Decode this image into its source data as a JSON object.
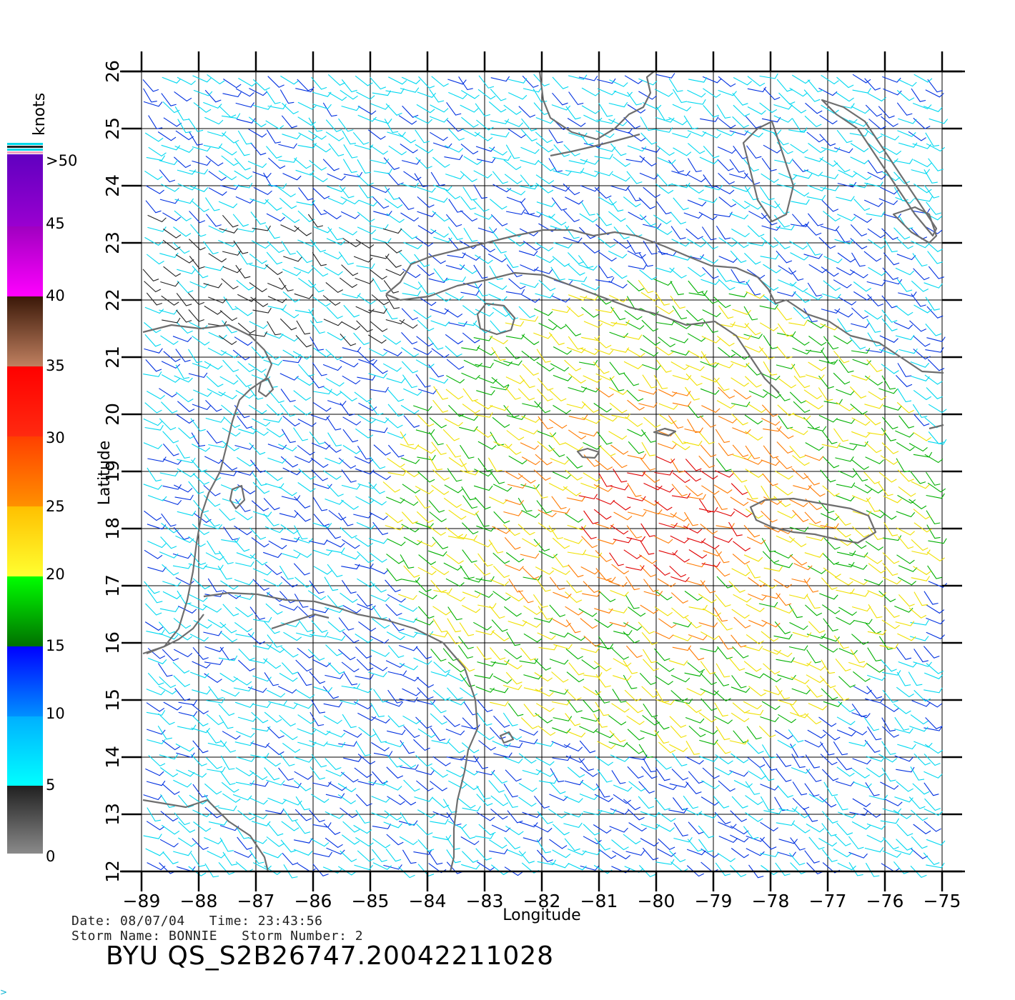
{
  "colorbar": {
    "unit_label": "knots",
    "labels": [
      ">50",
      "45",
      "40",
      "35",
      "30",
      "25",
      "20",
      "15",
      "10",
      "5",
      "0"
    ]
  },
  "map": {
    "lon_ticks": [
      "−89",
      "−88",
      "−87",
      "−86",
      "−85",
      "−84",
      "−83",
      "−82",
      "−81",
      "−80",
      "−79",
      "−78",
      "−77",
      "−76",
      "−75"
    ],
    "lat_ticks": [
      "12",
      "13",
      "14",
      "15",
      "16",
      "17",
      "18",
      "19",
      "20",
      "21",
      "22",
      "23",
      "24",
      "25",
      "26"
    ],
    "xlabel": "Longitude",
    "ylabel": "Latitude",
    "coastline_color": "#6e6e6e"
  },
  "footer": {
    "date_time": "Date: 08/07/04   Time: 23:43:56",
    "storm": "Storm Name: BONNIE   Storm Number: 2",
    "title": "BYU QS_S2B26747.20042211028"
  },
  "colors": {
    "speed_5_10": "#00d8f0",
    "speed_10_15": "#0030e0",
    "speed_15_20": "#00b000",
    "speed_20_25": "#f0e000",
    "speed_25_30": "#ff7a00",
    "speed_30_35": "#e00000",
    "speed_35_40": "#8b4a2a",
    "speed_40_45": "#e000e0",
    "speed_0_5": "#202020"
  }
}
